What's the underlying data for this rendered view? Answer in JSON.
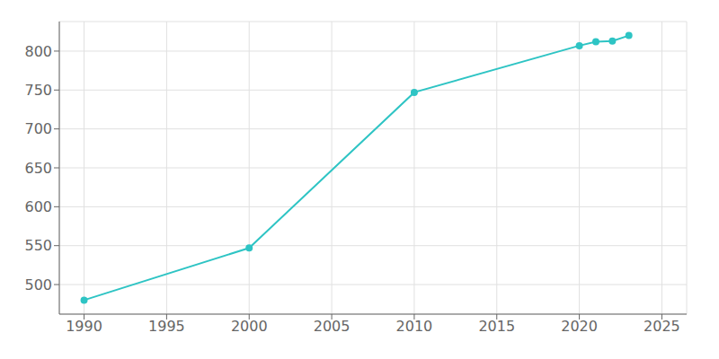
{
  "chart_data": {
    "type": "line",
    "x": [
      1990,
      2000,
      2010,
      2020,
      2021,
      2022,
      2023
    ],
    "values": [
      480,
      547,
      747,
      807,
      812,
      813,
      820
    ],
    "color": "#2ec4c4",
    "marker": "o",
    "xlim": [
      1988.5,
      2026.5
    ],
    "ylim": [
      462,
      838
    ],
    "xticks": [
      1990,
      1995,
      2000,
      2005,
      2010,
      2015,
      2020,
      2025
    ],
    "yticks": [
      500,
      550,
      600,
      650,
      700,
      750,
      800
    ],
    "grid": true
  }
}
